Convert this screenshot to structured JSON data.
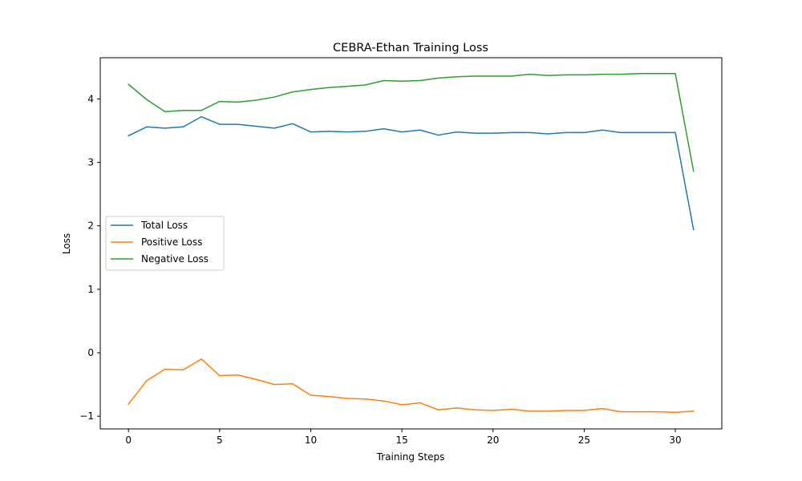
{
  "chart_data": {
    "type": "line",
    "title": "CEBRA-Ethan Training Loss",
    "xlabel": "Training Steps",
    "ylabel": "Loss",
    "xlim": [
      -1.55,
      32.55
    ],
    "ylim": [
      -1.2,
      4.65
    ],
    "xticks": [
      0,
      5,
      10,
      15,
      20,
      25,
      30
    ],
    "yticks": [
      -1,
      0,
      1,
      2,
      3,
      4
    ],
    "grid": false,
    "legend_position": "center-left",
    "x": [
      0,
      1,
      2,
      3,
      4,
      5,
      6,
      7,
      8,
      9,
      10,
      11,
      12,
      13,
      14,
      15,
      16,
      17,
      18,
      19,
      20,
      21,
      22,
      23,
      24,
      25,
      26,
      27,
      28,
      29,
      30,
      31
    ],
    "series": [
      {
        "name": "Total Loss",
        "color": "#1f77b4",
        "values": [
          3.42,
          3.56,
          3.54,
          3.56,
          3.72,
          3.6,
          3.6,
          3.57,
          3.54,
          3.61,
          3.48,
          3.49,
          3.48,
          3.49,
          3.53,
          3.48,
          3.51,
          3.43,
          3.48,
          3.46,
          3.46,
          3.47,
          3.47,
          3.45,
          3.47,
          3.47,
          3.51,
          3.47,
          3.47,
          3.47,
          3.47,
          1.94
        ]
      },
      {
        "name": "Positive Loss",
        "color": "#ff7f0e",
        "values": [
          -0.81,
          -0.44,
          -0.26,
          -0.27,
          -0.1,
          -0.36,
          -0.35,
          -0.42,
          -0.5,
          -0.49,
          -0.67,
          -0.69,
          -0.72,
          -0.73,
          -0.76,
          -0.82,
          -0.79,
          -0.9,
          -0.87,
          -0.9,
          -0.91,
          -0.89,
          -0.92,
          -0.92,
          -0.91,
          -0.91,
          -0.88,
          -0.93,
          -0.93,
          -0.93,
          -0.94,
          -0.92
        ]
      },
      {
        "name": "Negative Loss",
        "color": "#2ca02c",
        "values": [
          4.23,
          3.99,
          3.8,
          3.82,
          3.82,
          3.96,
          3.95,
          3.98,
          4.03,
          4.11,
          4.15,
          4.18,
          4.2,
          4.22,
          4.29,
          4.28,
          4.29,
          4.33,
          4.35,
          4.36,
          4.36,
          4.36,
          4.39,
          4.37,
          4.38,
          4.38,
          4.39,
          4.39,
          4.4,
          4.4,
          4.4,
          2.86
        ]
      }
    ]
  }
}
